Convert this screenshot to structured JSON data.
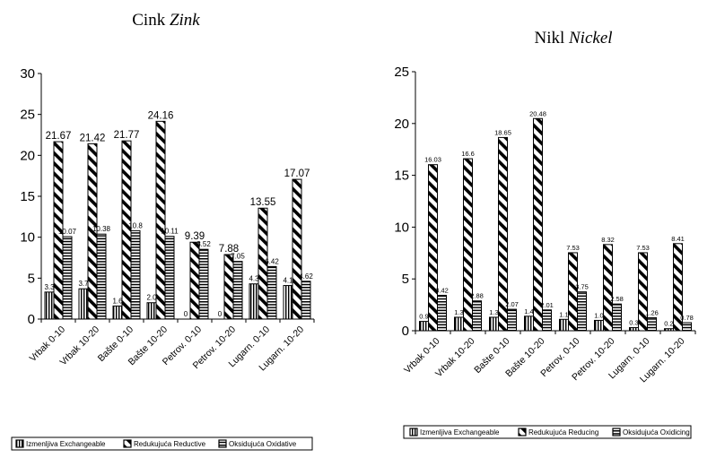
{
  "chart_data": [
    {
      "type": "bar",
      "title": "Cink",
      "title_italic": "Zink",
      "categories": [
        "Vrbak 0-10",
        "Vrbak 10-20",
        "Bašte 0-10",
        "Bašte 10-20",
        "Petrov. 0-10",
        "Petrov. 10-20",
        "Lugarn. 0-10",
        "Lugarn. 10-20"
      ],
      "ylim": [
        0,
        30
      ],
      "yticks": [
        0,
        5,
        10,
        15,
        20,
        25,
        30
      ],
      "legend_position": "bottom",
      "series": [
        {
          "name": "Izmenljiva Exchangeable",
          "values": [
            3.3,
            3.7,
            1.6,
            2.0,
            0,
            0,
            4.3,
            4.1
          ],
          "labels": [
            "3.3",
            "3.7",
            "1.6",
            "2.0",
            "0",
            "0",
            "4.3",
            "4.1"
          ],
          "pattern": "vlines"
        },
        {
          "name": "Redukujuća Reductive",
          "values": [
            21.67,
            21.42,
            21.77,
            24.16,
            9.39,
            7.88,
            13.55,
            17.07
          ],
          "labels": [
            "21.67",
            "21.42",
            "21.77",
            "24.16",
            "9.39",
            "7.88",
            "13.55",
            "17.07"
          ],
          "pattern": "diag"
        },
        {
          "name": "Oksidujuća Oxidative",
          "values": [
            10.07,
            10.38,
            10.8,
            10.11,
            8.52,
            7.05,
            6.42,
            4.62
          ],
          "labels": [
            "10.07",
            "10.38",
            "10.8",
            "10.11",
            "8.52",
            "7.05",
            "6.42",
            "4.62"
          ],
          "pattern": "hlines"
        }
      ]
    },
    {
      "type": "bar",
      "title": "Nikl",
      "title_italic": "Nickel",
      "categories": [
        "Vrbak 0-10",
        "Vrbak 10-20",
        "Bašte 0-10",
        "Bašte 10-20",
        "Petrov. 0-10",
        "Petrov. 10-20",
        "Lugarn. 0-10",
        "Lugarn. 10-20"
      ],
      "ylim": [
        0,
        25
      ],
      "yticks": [
        0,
        5,
        10,
        15,
        20,
        25
      ],
      "legend_position": "bottom",
      "series": [
        {
          "name": "Izmenljiva Exchangeable",
          "values": [
            0.9,
            1.3,
            1.3,
            1.4,
            1.1,
            1.0,
            0.3,
            0.2
          ],
          "labels": [
            "0.9",
            "1.3",
            "1.3",
            "1.4",
            "1.1",
            "1.0",
            "0.3",
            "0.2"
          ],
          "pattern": "vlines"
        },
        {
          "name": "Redukujuća Reducing",
          "values": [
            16.03,
            16.6,
            18.65,
            20.48,
            7.53,
            8.32,
            7.53,
            8.41
          ],
          "labels": [
            "16.03",
            "16.6",
            "18.65",
            "20.48",
            "7.53",
            "8.32",
            "7.53",
            "8.41"
          ],
          "pattern": "diag"
        },
        {
          "name": "Oksidujuća Oxidicing",
          "values": [
            3.42,
            2.88,
            2.07,
            2.01,
            3.75,
            2.58,
            1.26,
            0.78
          ],
          "labels": [
            "3.42",
            "2.88",
            "2.07",
            "2.01",
            "3.75",
            "2.58",
            "1.26",
            "0.78"
          ],
          "pattern": "hlines"
        }
      ]
    }
  ]
}
